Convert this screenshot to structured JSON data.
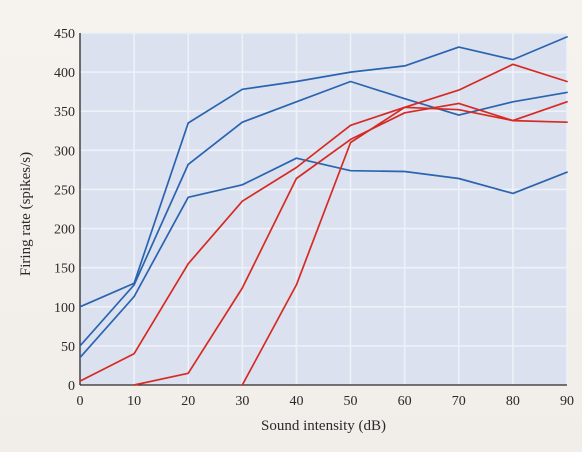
{
  "chart_data": {
    "type": "line",
    "xlabel": "Sound intensity (dB)",
    "ylabel": "Firing rate (spikes/s)",
    "xlim": [
      0,
      90
    ],
    "ylim": [
      0,
      450
    ],
    "xticks": [
      0,
      10,
      20,
      30,
      40,
      50,
      60,
      70,
      80,
      90
    ],
    "yticks": [
      0,
      50,
      100,
      150,
      200,
      250,
      300,
      350,
      400,
      450
    ],
    "grid": true,
    "plot_background": "#dbe1ef",
    "grid_color": "#eef1f8",
    "series": [
      {
        "color": "#2a64b0",
        "x": [
          0,
          10,
          20,
          30,
          40,
          50,
          60,
          70,
          80,
          90
        ],
        "values": [
          100,
          130,
          335,
          378,
          388,
          400,
          408,
          432,
          416,
          445
        ]
      },
      {
        "color": "#2a64b0",
        "x": [
          0,
          10,
          20,
          30,
          40,
          50,
          60,
          70,
          80,
          90
        ],
        "values": [
          50,
          128,
          282,
          336,
          362,
          388,
          366,
          345,
          362,
          374
        ]
      },
      {
        "color": "#2a64b0",
        "x": [
          0,
          10,
          20,
          30,
          40,
          50,
          60,
          70,
          80,
          90
        ],
        "values": [
          35,
          113,
          240,
          256,
          290,
          274,
          273,
          264,
          245,
          272
        ]
      },
      {
        "color": "#d62a22",
        "x": [
          0,
          10,
          20,
          30,
          40,
          50,
          60,
          70,
          80,
          90
        ],
        "values": [
          5,
          40,
          155,
          235,
          278,
          332,
          355,
          377,
          410,
          388
        ]
      },
      {
        "color": "#d62a22",
        "x": [
          10,
          20,
          30,
          40,
          50,
          60,
          70,
          80,
          90
        ],
        "values": [
          0,
          15,
          124,
          264,
          314,
          348,
          360,
          338,
          362
        ]
      },
      {
        "color": "#d62a22",
        "x": [
          30,
          40,
          50,
          60,
          70,
          80,
          90
        ],
        "values": [
          0,
          128,
          310,
          355,
          352,
          338,
          336
        ]
      }
    ]
  }
}
